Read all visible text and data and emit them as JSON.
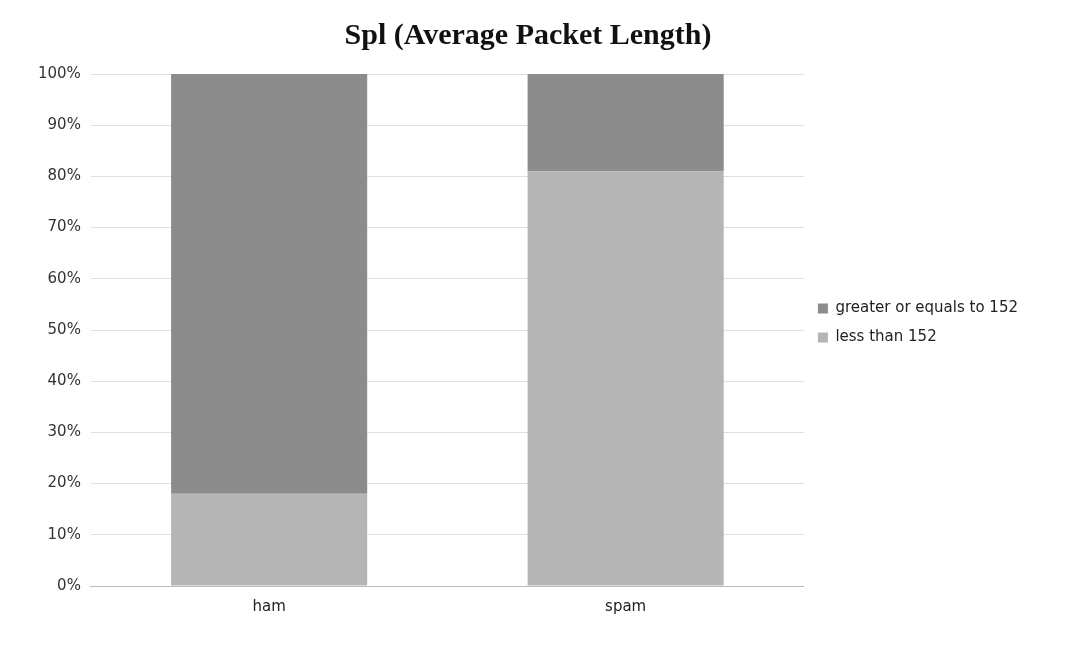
{
  "chart_data": {
    "type": "bar",
    "title": "Spl (Average Packet Length)",
    "categories": [
      "ham",
      "spam"
    ],
    "stacked": true,
    "series": [
      {
        "name": "less than 152",
        "color": "#b5b5b5",
        "values": [
          18,
          81
        ]
      },
      {
        "name": "greater or equals to 152",
        "color": "#8c8c8c",
        "values": [
          82,
          19
        ]
      }
    ],
    "ylim": [
      0,
      100
    ],
    "yticks": [
      {
        "value": 0,
        "label": "0%"
      },
      {
        "value": 10,
        "label": "10%"
      },
      {
        "value": 20,
        "label": "20%"
      },
      {
        "value": 30,
        "label": "30%"
      },
      {
        "value": 40,
        "label": "40%"
      },
      {
        "value": 50,
        "label": "50%"
      },
      {
        "value": 60,
        "label": "60%"
      },
      {
        "value": 70,
        "label": "70%"
      },
      {
        "value": 80,
        "label": "80%"
      },
      {
        "value": 90,
        "label": "90%"
      },
      {
        "value": 100,
        "label": "100%"
      }
    ],
    "grid": "y",
    "legend": "right"
  }
}
